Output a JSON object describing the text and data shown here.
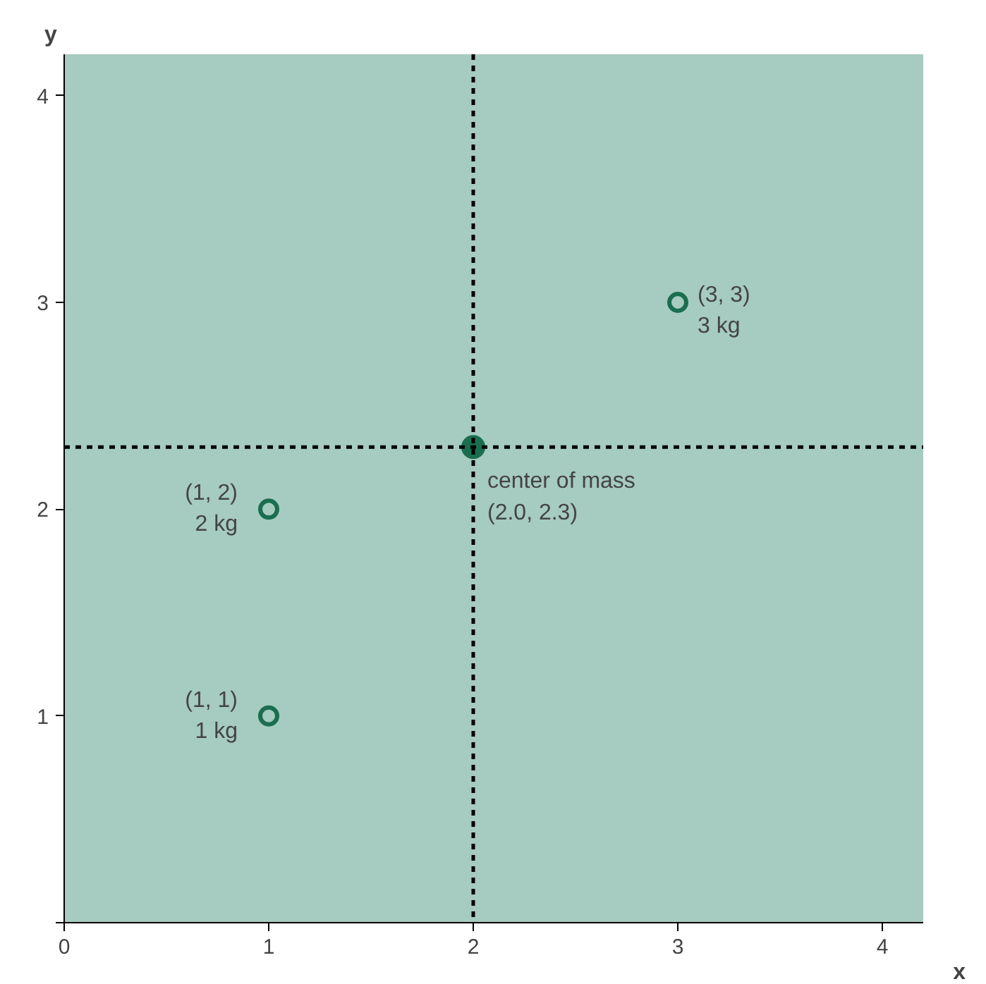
{
  "chart_data": {
    "type": "scatter",
    "xlabel": "x",
    "ylabel": "y",
    "xlim": [
      0,
      4.2
    ],
    "ylim": [
      0,
      4.2
    ],
    "xticks": [
      0,
      1,
      2,
      3,
      4
    ],
    "yticks": [
      {
        "value": 0,
        "label": null
      },
      1,
      2,
      3,
      4
    ],
    "series": [
      {
        "color": "#1a6e50",
        "x": [
          1,
          1,
          3
        ],
        "values": [
          1,
          2,
          3
        ],
        "marker": "circle"
      },
      {
        "color": "#1a6e50",
        "x": [
          2.0
        ],
        "values": [
          2.3
        ],
        "marker": "circle"
      }
    ],
    "ref_lines": [
      {
        "axis": "x",
        "value": 2.0,
        "line_style": "dotted",
        "color": "#000000"
      },
      {
        "axis": "y",
        "value": 2.3,
        "line_style": "dotted",
        "color": "#000000"
      }
    ],
    "annotations": [
      {
        "text": "(1, 1)\n1 kg",
        "x": 1,
        "y": 1
      },
      {
        "text": "(1, 2)\n2 kg",
        "x": 1,
        "y": 2
      },
      {
        "text": "(3, 3)\n3 kg",
        "x": 3,
        "y": 3
      },
      {
        "text": "center of mass\n(2.0, 2.3)",
        "x": 2.0,
        "y": 2.3
      }
    ],
    "grid": false
  }
}
